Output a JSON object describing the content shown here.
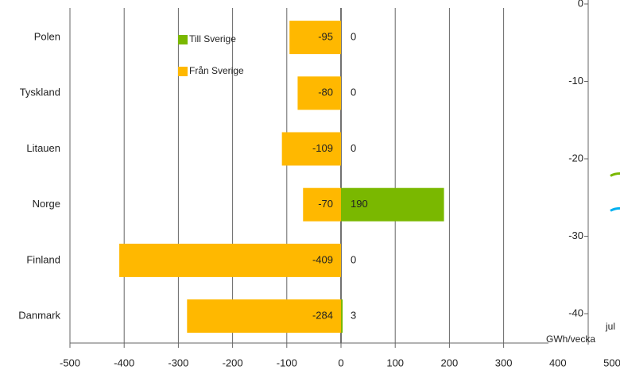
{
  "chart_data": [
    {
      "type": "bar",
      "orientation": "horizontal",
      "categories": [
        "Polen",
        "Tyskland",
        "Litauen",
        "Norge",
        "Finland",
        "Danmark"
      ],
      "series": [
        {
          "name": "Till Sverige",
          "color": "#7ab800",
          "values": [
            0,
            0,
            0,
            190,
            0,
            3
          ]
        },
        {
          "name": "Från Sverige",
          "color": "#ffb800",
          "values": [
            -95,
            -80,
            -109,
            -70,
            -409,
            -284
          ]
        }
      ],
      "xlim": [
        -500,
        500
      ],
      "xticks": [
        -500,
        -400,
        -300,
        -200,
        -100,
        0,
        100,
        200,
        300,
        400,
        500
      ],
      "grid": true,
      "legend": "top"
    },
    {
      "type": "line",
      "y_label": "GWh/vecka",
      "categories": [
        "jul"
      ],
      "series": [
        {
          "color": "#7ab800",
          "values": [
            -22
          ]
        },
        {
          "color": "#00b0f0",
          "values": [
            -26.5
          ]
        }
      ],
      "ylim": [
        -44,
        0
      ],
      "yticks": [
        0,
        -10,
        -20,
        -30,
        -40
      ]
    }
  ]
}
